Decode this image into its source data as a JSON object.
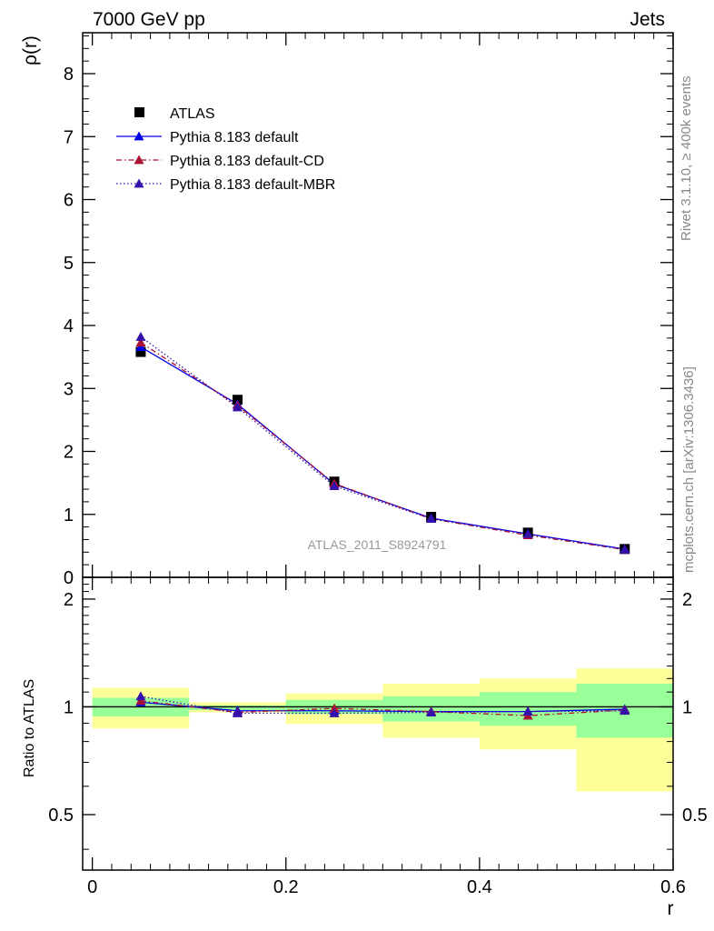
{
  "header": {
    "left": "7000 GeV pp",
    "right": "Jets"
  },
  "side_text": {
    "top": "Rivet 3.1.10, ≥ 400k events",
    "bottom": "mcplots.cern.ch [arXiv:1306.3436]"
  },
  "watermark": "ATLAS_2011_S8924791",
  "chart_data": [
    {
      "type": "scatter",
      "panel": "main",
      "ylabel": "ρ(r)",
      "xlim": [
        -0.01,
        0.6
      ],
      "ylim": [
        0,
        8.65
      ],
      "yticks": [
        0,
        1,
        2,
        3,
        4,
        5,
        6,
        7,
        8
      ],
      "ytick_labels": [
        "0",
        "1",
        "2",
        "3",
        "4",
        "5",
        "6",
        "7",
        "8"
      ],
      "legend": {
        "placement": "top-left",
        "entries": [
          "ATLAS",
          "Pythia 8.183 default",
          "Pythia 8.183 default-CD",
          "Pythia 8.183 default-MBR"
        ]
      },
      "x": [
        0.05,
        0.15,
        0.25,
        0.35,
        0.45,
        0.55
      ],
      "series": [
        {
          "name": "ATLAS",
          "values": [
            3.58,
            2.82,
            1.52,
            0.96,
            0.71,
            0.45
          ],
          "color": "#000000",
          "marker": "square",
          "line": "none"
        },
        {
          "name": "Pythia 8.183 default",
          "values": [
            3.66,
            2.75,
            1.48,
            0.94,
            0.69,
            0.45
          ],
          "color": "#0000ee",
          "marker": "triangle",
          "line": "solid"
        },
        {
          "name": "Pythia 8.183 default-CD",
          "values": [
            3.73,
            2.73,
            1.49,
            0.93,
            0.67,
            0.44
          ],
          "color": "#aa1133",
          "marker": "triangle",
          "line": "dashdot"
        },
        {
          "name": "Pythia 8.183 default-MBR",
          "values": [
            3.82,
            2.7,
            1.45,
            0.93,
            0.69,
            0.44
          ],
          "color": "#3311aa",
          "marker": "triangle",
          "line": "dotted"
        }
      ]
    },
    {
      "type": "scatter",
      "panel": "ratio",
      "ylabel": "Ratio to ATLAS",
      "xlabel": "r",
      "xlim": [
        -0.01,
        0.6
      ],
      "xticks": [
        0,
        0.2,
        0.4,
        0.6
      ],
      "xtick_labels": [
        "0",
        "0.2",
        "0.4",
        "0.6"
      ],
      "ylim": [
        0.35,
        2.3
      ],
      "yticks": [
        0.5,
        1,
        2
      ],
      "ytick_labels": [
        "0.5",
        "1",
        "2"
      ],
      "reference_line": 1,
      "bands": [
        {
          "x0": 0.0,
          "x1": 0.1,
          "stat": [
            0.94,
            1.06
          ],
          "total": [
            0.87,
            1.13
          ]
        },
        {
          "x0": 0.1,
          "x1": 0.2,
          "stat": [
            0.98,
            1.01
          ],
          "total": [
            0.965,
            1.03
          ]
        },
        {
          "x0": 0.2,
          "x1": 0.3,
          "stat": [
            0.955,
            1.045
          ],
          "total": [
            0.895,
            1.09
          ]
        },
        {
          "x0": 0.3,
          "x1": 0.4,
          "stat": [
            0.91,
            1.07
          ],
          "total": [
            0.82,
            1.16
          ]
        },
        {
          "x0": 0.4,
          "x1": 0.5,
          "stat": [
            0.885,
            1.1
          ],
          "total": [
            0.76,
            1.2
          ]
        },
        {
          "x0": 0.5,
          "x1": 0.6,
          "stat": [
            0.82,
            1.16
          ],
          "total": [
            0.58,
            1.28
          ]
        }
      ],
      "x": [
        0.05,
        0.15,
        0.25,
        0.35,
        0.45,
        0.55
      ],
      "series": [
        {
          "name": "Pythia 8.183 default",
          "values": [
            1.03,
            0.975,
            0.975,
            0.97,
            0.97,
            0.985
          ],
          "color": "#0000ee",
          "marker": "triangle",
          "line": "solid"
        },
        {
          "name": "Pythia 8.183 default-CD",
          "values": [
            1.04,
            0.965,
            0.99,
            0.97,
            0.945,
            0.98
          ],
          "color": "#aa1133",
          "marker": "triangle",
          "line": "dashdot"
        },
        {
          "name": "Pythia 8.183 default-MBR",
          "values": [
            1.07,
            0.96,
            0.96,
            0.965,
            0.97,
            0.975
          ],
          "color": "#3311aa",
          "marker": "triangle",
          "line": "dotted"
        }
      ]
    }
  ],
  "colors": {
    "stat_band": "#99ff99",
    "total_band": "#ffff99",
    "axis": "#000000"
  }
}
